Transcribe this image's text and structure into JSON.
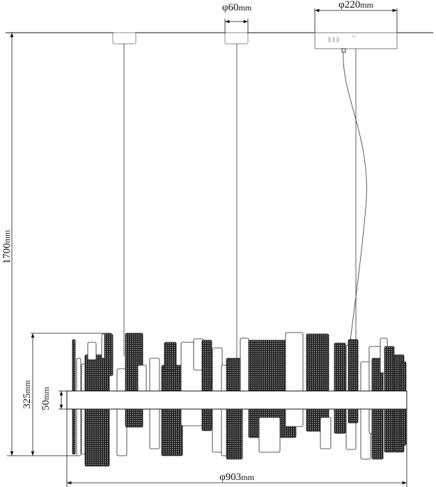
{
  "dimensions": {
    "canopy_small": {
      "symbol": "φ",
      "value": "60",
      "unit": "mm"
    },
    "canopy_large": {
      "symbol": "φ",
      "value": "220",
      "unit": "mm"
    },
    "total_height": {
      "value": "1700",
      "unit": "mm"
    },
    "body_height": {
      "value": "325",
      "unit": "mm"
    },
    "band_height": {
      "value": "50",
      "unit": "mm"
    },
    "diameter": {
      "symbol": "φ",
      "value": "903",
      "unit": "mm"
    }
  },
  "colors": {
    "line": "#111111",
    "texture": "#1a1a1a"
  }
}
